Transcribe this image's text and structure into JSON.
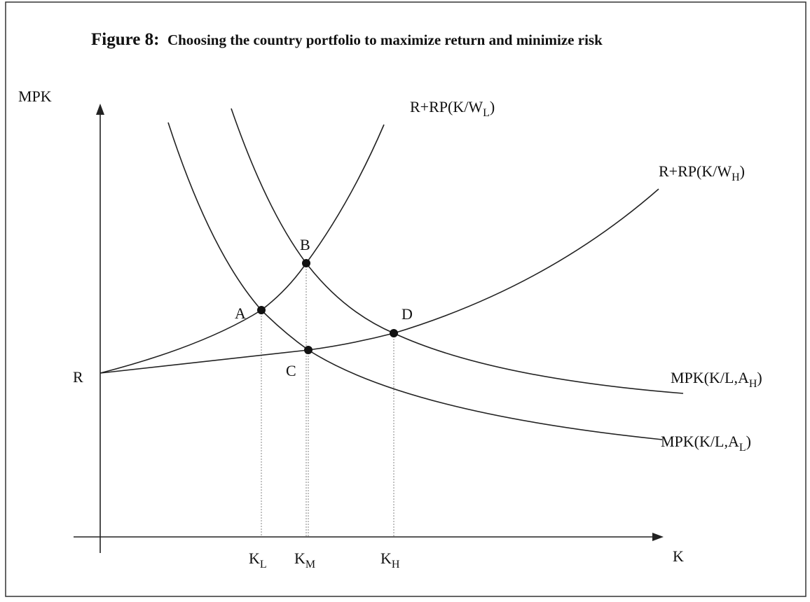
{
  "figure": {
    "title": {
      "label": "Figure 8:",
      "text": "Choosing the country portfolio to maximize return and minimize risk"
    },
    "y_axis_label": "MPK",
    "x_axis_label": "K",
    "origin_label": "R",
    "curves": [
      {
        "base": "R+RP(K/W",
        "sub": "L",
        "end": ")"
      },
      {
        "base": "R+RP(K/W",
        "sub": "H",
        "end": ")"
      },
      {
        "base": "MPK(K/L,A",
        "sub": "H",
        "end": ")"
      },
      {
        "base": "MPK(K/L,A",
        "sub": "L",
        "end": ")"
      }
    ],
    "points": [
      "A",
      "B",
      "C",
      "D"
    ],
    "x_ticks": [
      {
        "base": "K",
        "sub": "L"
      },
      {
        "base": "K",
        "sub": "M"
      },
      {
        "base": "K",
        "sub": "H"
      }
    ]
  }
}
